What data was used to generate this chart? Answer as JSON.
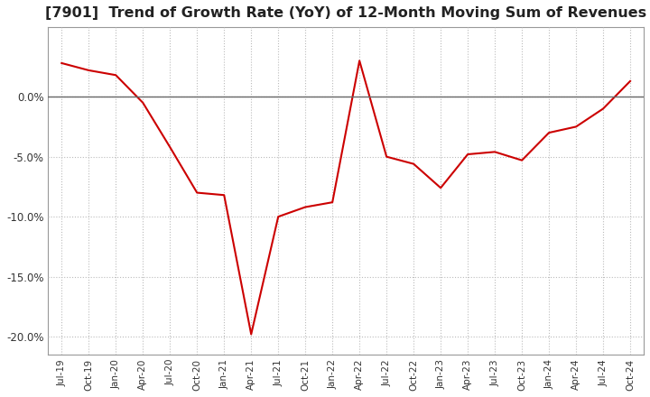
{
  "title": "[7901]  Trend of Growth Rate (YoY) of 12-Month Moving Sum of Revenues",
  "title_fontsize": 11.5,
  "line_color": "#cc0000",
  "background_color": "#ffffff",
  "plot_bg_color": "#ffffff",
  "grid_color": "#bbbbbb",
  "zero_line_color": "#666666",
  "ylim": [
    -0.215,
    0.058
  ],
  "yticks": [
    0.0,
    -0.05,
    -0.1,
    -0.15,
    -0.2
  ],
  "values": [
    0.028,
    0.022,
    0.018,
    -0.005,
    -0.042,
    -0.08,
    -0.082,
    -0.198,
    -0.1,
    -0.092,
    -0.088,
    0.03,
    -0.05,
    -0.056,
    -0.076,
    -0.048,
    -0.046,
    -0.053,
    -0.03,
    -0.025,
    -0.01,
    0.013
  ],
  "xtick_labels": [
    "Jul-19",
    "Oct-19",
    "Jan-20",
    "Apr-20",
    "Jul-20",
    "Oct-20",
    "Jan-21",
    "Apr-21",
    "Jul-21",
    "Oct-21",
    "Jan-22",
    "Apr-22",
    "Jul-22",
    "Oct-22",
    "Jan-23",
    "Apr-23",
    "Jul-23",
    "Oct-23",
    "Jan-24",
    "Apr-24",
    "Jul-24",
    "Oct-24"
  ]
}
